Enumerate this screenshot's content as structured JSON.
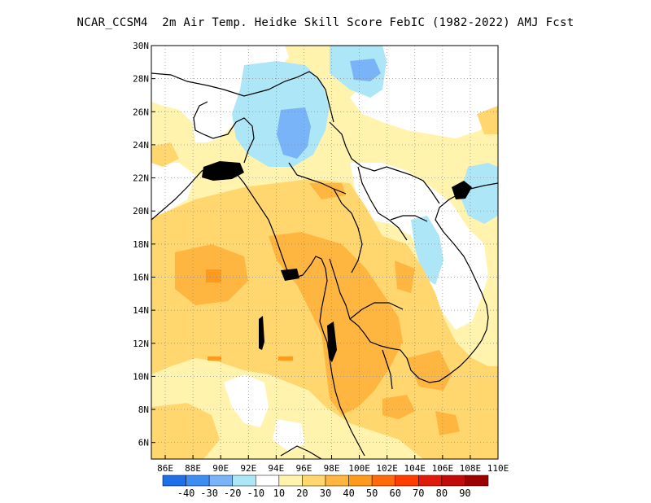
{
  "title": "NCAR_CCSM4  2m Air Temp. Heidke Skill Score FebIC (1982-2022) AMJ Fcst",
  "map": {
    "lon_labels": [
      "86E",
      "88E",
      "90E",
      "92E",
      "94E",
      "96E",
      "98E",
      "100E",
      "102E",
      "104E",
      "106E",
      "108E",
      "110E"
    ],
    "lat_labels": [
      "6N",
      "8N",
      "10N",
      "12N",
      "14N",
      "16N",
      "18N",
      "20N",
      "22N",
      "24N",
      "26N",
      "28N",
      "30N"
    ],
    "lon_range": [
      85,
      110
    ],
    "lat_range": [
      5,
      30
    ],
    "grid": true
  },
  "legend": {
    "labels": [
      "-40",
      "-30",
      "-20",
      "-10",
      "10",
      "20",
      "30",
      "40",
      "50",
      "60",
      "70",
      "80",
      "90"
    ],
    "colors": [
      "#1f6fe8",
      "#3d8ef2",
      "#78b4f7",
      "#ade6f6",
      "#ffffff",
      "#fff3ae",
      "#ffd76e",
      "#ffb640",
      "#ff9a1c",
      "#ff6a0a",
      "#ff3d00",
      "#e01a0a",
      "#c20a0a",
      "#9c0000"
    ]
  }
}
